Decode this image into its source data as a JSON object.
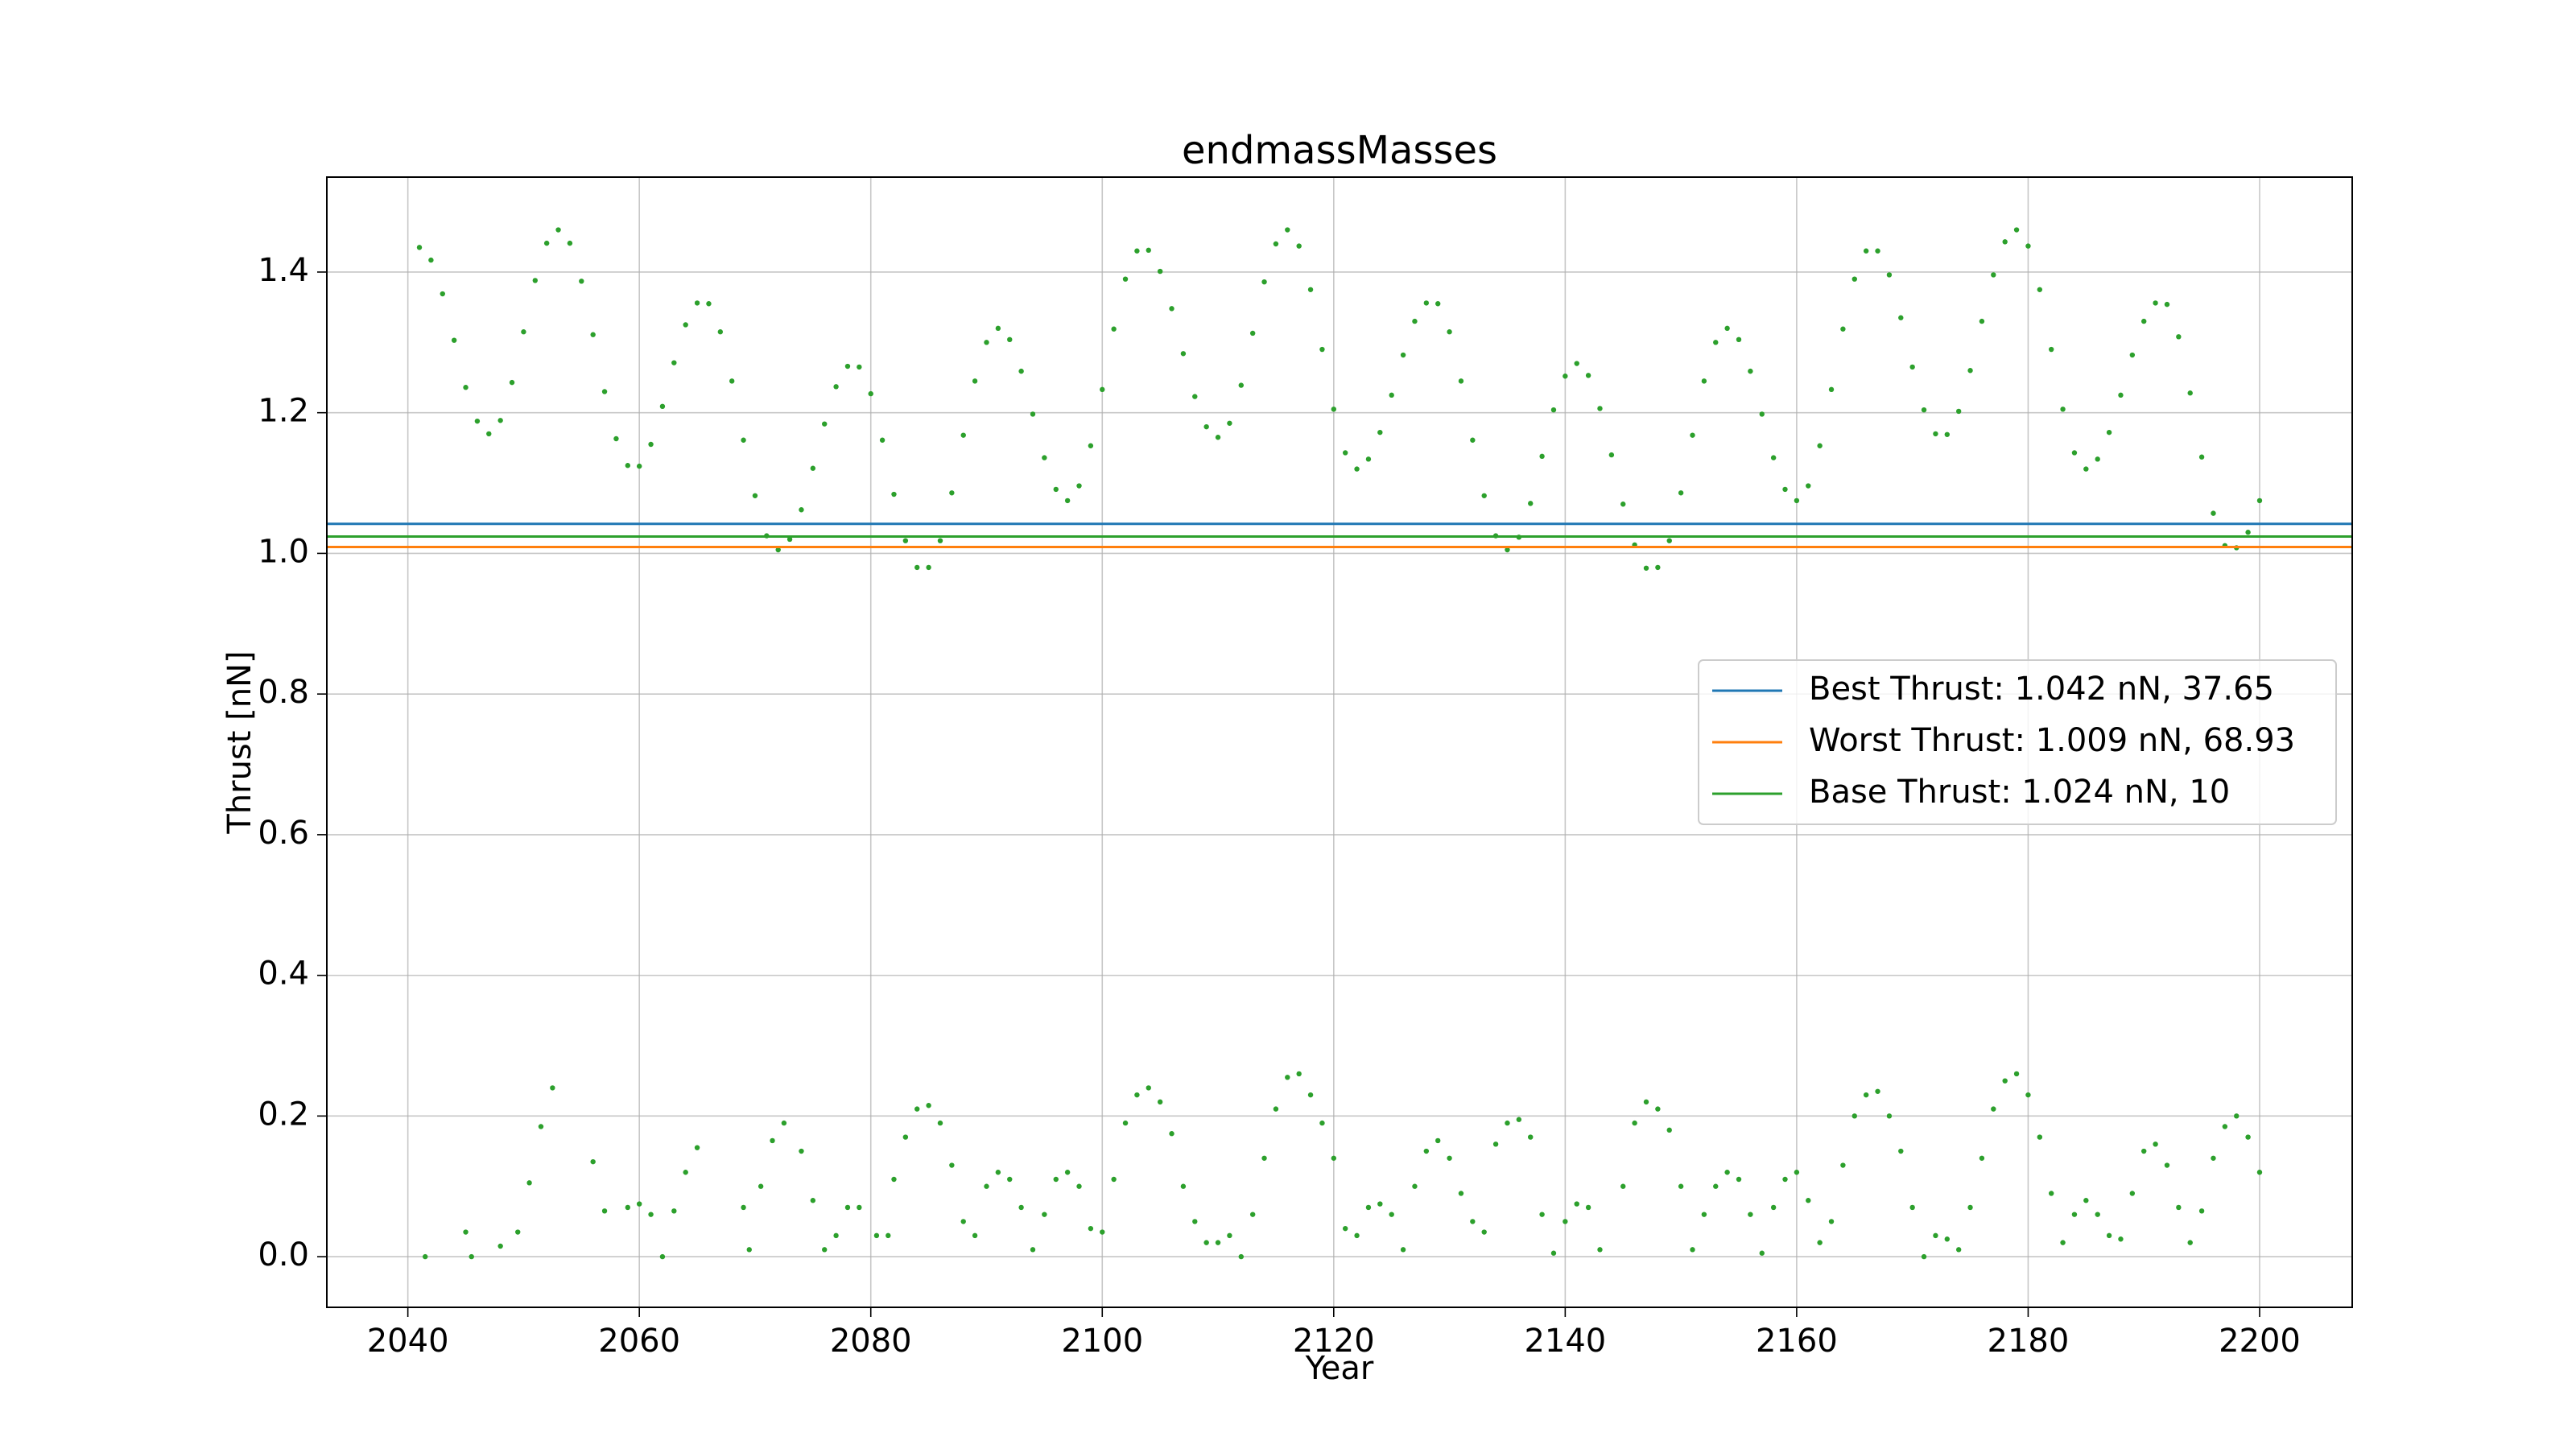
{
  "chart_data": {
    "type": "scatter",
    "title": "endmassMasses",
    "x_label": "Year",
    "y_label": "Thrust [nN]",
    "xlim": [
      2033,
      2208
    ],
    "ylim": [
      -0.072,
      1.535
    ],
    "xticks": [
      2040,
      2060,
      2080,
      2100,
      2120,
      2140,
      2160,
      2180,
      2200
    ],
    "yticks": [
      {
        "value": 0,
        "label": "0.0"
      },
      0.2,
      0.4,
      0.6,
      0.8,
      {
        "value": 1,
        "label": "1.0"
      },
      1.2,
      1.4
    ],
    "grid": true,
    "legend": "center right",
    "lines": [
      {
        "name": "Best Thrust: 1.042 nN, 37.65",
        "color": "#1f77b4",
        "value": 1.042
      },
      {
        "name": "Worst Thrust: 1.009 nN, 68.93",
        "color": "#ff7f0e",
        "value": 1.009
      },
      {
        "name": "Base Thrust: 1.024 nN, 10",
        "color": "#2ca02c",
        "value": 1.024
      }
    ],
    "series": [
      {
        "color": "#2ca02c",
        "x": [
          2041,
          2042,
          2043,
          2044,
          2045,
          2046,
          2047,
          2048,
          2049,
          2050,
          2051,
          2052,
          2053,
          2054,
          2055,
          2056,
          2057,
          2058,
          2059,
          2060,
          2061,
          2062,
          2063,
          2064,
          2065,
          2066,
          2067,
          2068,
          2069,
          2070,
          2071,
          2072,
          2073,
          2074,
          2075,
          2076,
          2077,
          2078,
          2079,
          2080,
          2081,
          2082,
          2083,
          2084,
          2085,
          2086,
          2087,
          2088,
          2089,
          2090,
          2091,
          2092,
          2093,
          2094,
          2095,
          2096,
          2097,
          2098,
          2099,
          2100,
          2101,
          2102,
          2103,
          2104,
          2105,
          2106,
          2107,
          2108,
          2109,
          2110,
          2111,
          2112,
          2113,
          2114,
          2115,
          2116,
          2117,
          2118,
          2119,
          2120,
          2121,
          2122,
          2123,
          2124,
          2125,
          2126,
          2127,
          2128,
          2129,
          2130,
          2131,
          2132,
          2133,
          2134,
          2135,
          2136,
          2137,
          2138,
          2139,
          2140,
          2141,
          2142,
          2143,
          2144,
          2145,
          2146,
          2147,
          2148,
          2149,
          2150,
          2151,
          2152,
          2153,
          2154,
          2155,
          2156,
          2157,
          2158,
          2159,
          2160,
          2161,
          2162,
          2163,
          2164,
          2165,
          2166,
          2167,
          2168,
          2169,
          2170,
          2171,
          2172,
          2173,
          2174,
          2175,
          2176,
          2177,
          2178,
          2179,
          2180,
          2181,
          2182,
          2183,
          2184,
          2185,
          2186,
          2187,
          2188,
          2189,
          2190,
          2191,
          2192,
          2193,
          2194,
          2195,
          2196,
          2197,
          2198,
          2199,
          2200
        ],
        "y": [
          1.435,
          1.417,
          1.369,
          1.303,
          1.236,
          1.188,
          1.17,
          1.189,
          1.243,
          1.315,
          1.388,
          1.441,
          1.46,
          1.441,
          1.387,
          1.311,
          1.23,
          1.163,
          1.125,
          1.124,
          1.155,
          1.209,
          1.271,
          1.325,
          1.356,
          1.355,
          1.315,
          1.245,
          1.161,
          1.082,
          1.025,
          1.005,
          1.02,
          1.062,
          1.121,
          1.184,
          1.237,
          1.266,
          1.265,
          1.227,
          1.161,
          1.084,
          1.018,
          0.98,
          0.98,
          1.018,
          1.086,
          1.168,
          1.245,
          1.3,
          1.32,
          1.304,
          1.259,
          1.198,
          1.136,
          1.091,
          1.075,
          1.096,
          1.153,
          1.233,
          1.319,
          1.39,
          1.43,
          1.431,
          1.401,
          1.348,
          1.284,
          1.223,
          1.18,
          1.165,
          1.185,
          1.239,
          1.313,
          1.386,
          1.44,
          1.46,
          1.437,
          1.375,
          1.29,
          1.205,
          1.143,
          1.12,
          1.134,
          1.172,
          1.225,
          1.282,
          1.33,
          1.356,
          1.355,
          1.315,
          1.245,
          1.161,
          1.082,
          1.025,
          1.005,
          1.023,
          1.071,
          1.138,
          1.204,
          1.252,
          1.27,
          1.253,
          1.206,
          1.14,
          1.07,
          1.012,
          0.979,
          0.98,
          1.018,
          1.086,
          1.168,
          1.245,
          1.3,
          1.32,
          1.304,
          1.259,
          1.198,
          1.136,
          1.091,
          1.075,
          1.096,
          1.153,
          1.233,
          1.319,
          1.39,
          1.43,
          1.43,
          1.396,
          1.335,
          1.265,
          1.204,
          1.17,
          1.169,
          1.202,
          1.26,
          1.33,
          1.396,
          1.443,
          1.46,
          1.437,
          1.375,
          1.29,
          1.205,
          1.143,
          1.12,
          1.134,
          1.172,
          1.225,
          1.282,
          1.33,
          1.356,
          1.354,
          1.308,
          1.228,
          1.137,
          1.057,
          1.011,
          1.008,
          1.03,
          1.075
        ]
      },
      {
        "color": "#2ca02c",
        "x": [
          2041.5,
          2045,
          2045.5,
          2048,
          2049.5,
          2050.5,
          2051.5,
          2052.5,
          2056,
          2057,
          2059,
          2060,
          2061,
          2062,
          2063,
          2064,
          2065,
          2069,
          2069.5,
          2070.5,
          2071.5,
          2072.5,
          2074,
          2075,
          2076,
          2077,
          2078,
          2079,
          2080.5,
          2081.5,
          2082,
          2083,
          2084,
          2085,
          2086,
          2087,
          2088,
          2089,
          2090,
          2091,
          2092,
          2093,
          2094,
          2095,
          2096,
          2097,
          2098,
          2099,
          2100,
          2101,
          2102,
          2103,
          2104,
          2105,
          2106,
          2107,
          2108,
          2109,
          2110,
          2111,
          2112,
          2113,
          2114,
          2115,
          2116,
          2117,
          2118,
          2119,
          2120,
          2121,
          2122,
          2123,
          2124,
          2125,
          2126,
          2127,
          2128,
          2129,
          2130,
          2131,
          2132,
          2133,
          2134,
          2135,
          2136,
          2137,
          2138,
          2139,
          2140,
          2141,
          2142,
          2143,
          2145,
          2146,
          2147,
          2148,
          2149,
          2150,
          2151,
          2152,
          2153,
          2154,
          2155,
          2156,
          2157,
          2158,
          2159,
          2160,
          2161,
          2162,
          2163,
          2164,
          2165,
          2166,
          2167,
          2168,
          2169,
          2170,
          2171,
          2172,
          2173,
          2174,
          2175,
          2176,
          2177,
          2178,
          2179,
          2180,
          2181,
          2182,
          2183,
          2184,
          2185,
          2186,
          2187,
          2188,
          2189,
          2190,
          2191,
          2192,
          2193,
          2194,
          2195,
          2196,
          2197,
          2198,
          2199,
          2200
        ],
        "y": [
          0,
          0.035,
          0,
          0.015,
          0.035,
          0.105,
          0.185,
          0.24,
          0.135,
          0.065,
          0.07,
          0.075,
          0.06,
          0,
          0.065,
          0.12,
          0.155,
          0.07,
          0.01,
          0.1,
          0.165,
          0.19,
          0.15,
          0.08,
          0.01,
          0.03,
          0.07,
          0.07,
          0.03,
          0.03,
          0.11,
          0.17,
          0.21,
          0.215,
          0.19,
          0.13,
          0.05,
          0.03,
          0.1,
          0.12,
          0.11,
          0.07,
          0.01,
          0.06,
          0.11,
          0.12,
          0.1,
          0.04,
          0.035,
          0.11,
          0.19,
          0.23,
          0.24,
          0.22,
          0.175,
          0.1,
          0.05,
          0.02,
          0.02,
          0.03,
          0,
          0.06,
          0.14,
          0.21,
          0.255,
          0.26,
          0.23,
          0.19,
          0.14,
          0.04,
          0.03,
          0.07,
          0.075,
          0.06,
          0.01,
          0.1,
          0.15,
          0.165,
          0.14,
          0.09,
          0.05,
          0.035,
          0.16,
          0.19,
          0.195,
          0.17,
          0.06,
          0.005,
          0.05,
          0.075,
          0.07,
          0.01,
          0.1,
          0.19,
          0.22,
          0.21,
          0.18,
          0.1,
          0.01,
          0.06,
          0.1,
          0.12,
          0.11,
          0.06,
          0.005,
          0.07,
          0.11,
          0.12,
          0.08,
          0.02,
          0.05,
          0.13,
          0.2,
          0.23,
          0.235,
          0.2,
          0.15,
          0.07,
          0,
          0.03,
          0.025,
          0.01,
          0.07,
          0.14,
          0.21,
          0.25,
          0.26,
          0.23,
          0.17,
          0.09,
          0.02,
          0.06,
          0.08,
          0.06,
          0.03,
          0.025,
          0.09,
          0.15,
          0.16,
          0.13,
          0.07,
          0.02,
          0.065,
          0.14,
          0.185,
          0.2,
          0.17,
          0.12
        ]
      }
    ]
  }
}
